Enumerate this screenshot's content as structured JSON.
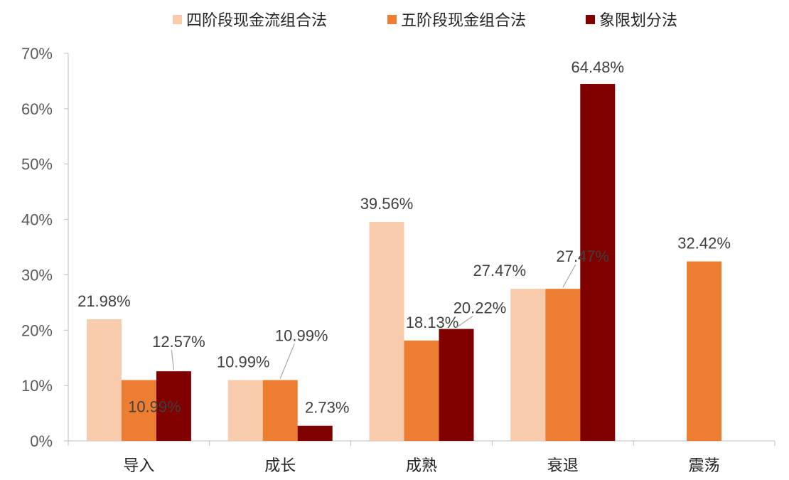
{
  "chart_data": {
    "type": "bar",
    "categories": [
      "导入",
      "成长",
      "成熟",
      "衰退",
      "震荡"
    ],
    "series": [
      {
        "name": "四阶段现金流组合法",
        "color": "#F8CBAD",
        "values": [
          21.98,
          10.99,
          39.56,
          27.47,
          null
        ],
        "labels": [
          "21.98%",
          "10.99%",
          "39.56%",
          "27.47%",
          ""
        ]
      },
      {
        "name": "五阶段现金组合法",
        "color": "#ED7D31",
        "values": [
          10.99,
          10.99,
          18.13,
          27.47,
          32.42
        ],
        "labels": [
          "10.99%",
          "10.99%",
          "18.13%",
          "27.47%",
          "32.42%"
        ]
      },
      {
        "name": "象限划分法",
        "color": "#800000",
        "values": [
          12.57,
          2.73,
          20.22,
          64.48,
          null
        ],
        "labels": [
          "12.57%",
          "2.73%",
          "20.22%",
          "64.48%",
          ""
        ]
      }
    ],
    "ylim": [
      0,
      70
    ],
    "yticks": [
      0,
      10,
      20,
      30,
      40,
      50,
      60,
      70
    ],
    "ytick_labels": [
      "0%",
      "10%",
      "20%",
      "30%",
      "40%",
      "50%",
      "60%",
      "70%"
    ],
    "legend_position": "top",
    "grid": false
  }
}
